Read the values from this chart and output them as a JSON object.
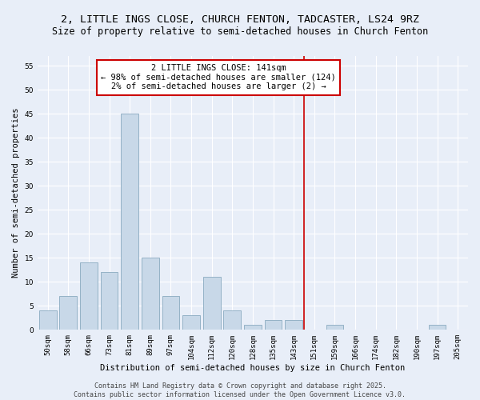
{
  "title": "2, LITTLE INGS CLOSE, CHURCH FENTON, TADCASTER, LS24 9RZ",
  "subtitle": "Size of property relative to semi-detached houses in Church Fenton",
  "xlabel": "Distribution of semi-detached houses by size in Church Fenton",
  "ylabel": "Number of semi-detached properties",
  "categories": [
    "50sqm",
    "58sqm",
    "66sqm",
    "73sqm",
    "81sqm",
    "89sqm",
    "97sqm",
    "104sqm",
    "112sqm",
    "120sqm",
    "128sqm",
    "135sqm",
    "143sqm",
    "151sqm",
    "159sqm",
    "166sqm",
    "174sqm",
    "182sqm",
    "190sqm",
    "197sqm",
    "205sqm"
  ],
  "values": [
    4,
    7,
    14,
    12,
    45,
    15,
    7,
    3,
    11,
    4,
    1,
    2,
    2,
    0,
    1,
    0,
    0,
    0,
    0,
    1,
    0
  ],
  "bar_color": "#c8d8e8",
  "bar_edge_color": "#8aaac0",
  "highlight_line_color": "#cc0000",
  "annotation_text": "2 LITTLE INGS CLOSE: 141sqm\n← 98% of semi-detached houses are smaller (124)\n2% of semi-detached houses are larger (2) →",
  "annotation_box_color": "#ffffff",
  "annotation_box_edge": "#cc0000",
  "ylim": [
    0,
    57
  ],
  "yticks": [
    0,
    5,
    10,
    15,
    20,
    25,
    30,
    35,
    40,
    45,
    50,
    55
  ],
  "background_color": "#e8eef8",
  "grid_color": "#ffffff",
  "footer": "Contains HM Land Registry data © Crown copyright and database right 2025.\nContains public sector information licensed under the Open Government Licence v3.0.",
  "title_fontsize": 9.5,
  "subtitle_fontsize": 8.5,
  "axis_label_fontsize": 7.5,
  "tick_fontsize": 6.5,
  "annotation_fontsize": 7.5,
  "footer_fontsize": 6.0,
  "line_x_index": 12.5
}
